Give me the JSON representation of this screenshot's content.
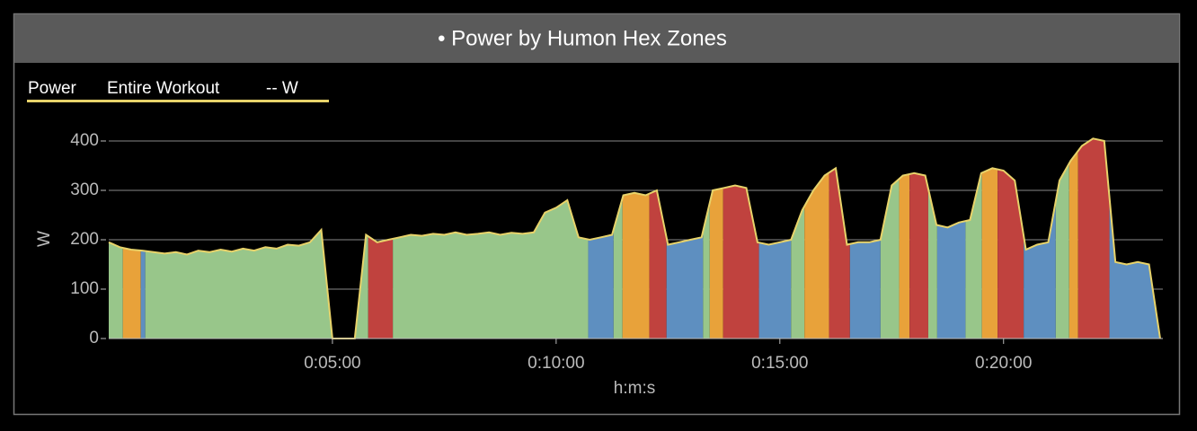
{
  "chart_data": {
    "type": "area",
    "title": "• Power by Humon Hex Zones",
    "legend_subtitle": "Entire Workout",
    "legend_value": "-- W",
    "xlabel": "h:m:s",
    "ylabel": "W",
    "x": [
      0,
      15,
      30,
      45,
      60,
      75,
      90,
      105,
      120,
      135,
      150,
      165,
      180,
      195,
      210,
      225,
      240,
      255,
      270,
      285,
      300,
      315,
      330,
      345,
      360,
      375,
      390,
      405,
      420,
      435,
      450,
      465,
      480,
      495,
      510,
      525,
      540,
      555,
      570,
      585,
      600,
      615,
      630,
      645,
      660,
      675,
      690,
      705,
      720,
      735,
      750,
      765,
      780,
      795,
      810,
      825,
      840,
      855,
      870,
      885,
      900,
      915,
      930,
      945,
      960,
      975,
      990,
      1005,
      1020,
      1035,
      1050,
      1065,
      1080,
      1095,
      1110,
      1125,
      1140,
      1155,
      1170,
      1185,
      1200,
      1215,
      1230,
      1245,
      1260,
      1275,
      1290,
      1305,
      1320,
      1335,
      1350,
      1365,
      1380,
      1395,
      1410
    ],
    "series": [
      {
        "name": "Power",
        "color": "#e8d36a",
        "values": [
          195,
          185,
          180,
          178,
          175,
          172,
          175,
          170,
          178,
          175,
          180,
          176,
          182,
          178,
          185,
          182,
          190,
          188,
          195,
          220,
          0,
          0,
          0,
          210,
          195,
          200,
          205,
          210,
          208,
          212,
          210,
          215,
          210,
          212,
          215,
          210,
          214,
          212,
          215,
          255,
          265,
          280,
          205,
          200,
          205,
          210,
          290,
          295,
          290,
          300,
          190,
          195,
          200,
          205,
          300,
          305,
          310,
          305,
          195,
          190,
          195,
          200,
          260,
          300,
          330,
          345,
          190,
          195,
          195,
          200,
          310,
          330,
          335,
          330,
          230,
          225,
          235,
          240,
          335,
          345,
          340,
          320,
          180,
          190,
          195,
          320,
          360,
          390,
          405,
          400,
          155,
          150,
          155,
          150,
          0
        ]
      }
    ],
    "bands": [
      {
        "start": 0,
        "end": 19,
        "color": "#98c68a"
      },
      {
        "start": 19,
        "end": 43,
        "color": "#e8a23a"
      },
      {
        "start": 43,
        "end": 49,
        "color": "#5e8fc0"
      },
      {
        "start": 49,
        "end": 348,
        "color": "#98c68a"
      },
      {
        "start": 348,
        "end": 381,
        "color": "#c0423e"
      },
      {
        "start": 381,
        "end": 643,
        "color": "#98c68a"
      },
      {
        "start": 643,
        "end": 677,
        "color": "#5e8fc0"
      },
      {
        "start": 677,
        "end": 689,
        "color": "#98c68a"
      },
      {
        "start": 689,
        "end": 725,
        "color": "#e8a23a"
      },
      {
        "start": 725,
        "end": 748,
        "color": "#c0423e"
      },
      {
        "start": 748,
        "end": 797,
        "color": "#5e8fc0"
      },
      {
        "start": 797,
        "end": 806,
        "color": "#98c68a"
      },
      {
        "start": 806,
        "end": 824,
        "color": "#e8a23a"
      },
      {
        "start": 824,
        "end": 872,
        "color": "#c0423e"
      },
      {
        "start": 872,
        "end": 915,
        "color": "#5e8fc0"
      },
      {
        "start": 915,
        "end": 933,
        "color": "#98c68a"
      },
      {
        "start": 933,
        "end": 966,
        "color": "#e8a23a"
      },
      {
        "start": 966,
        "end": 994,
        "color": "#c0423e"
      },
      {
        "start": 994,
        "end": 1035,
        "color": "#5e8fc0"
      },
      {
        "start": 1035,
        "end": 1060,
        "color": "#98c68a"
      },
      {
        "start": 1060,
        "end": 1074,
        "color": "#e8a23a"
      },
      {
        "start": 1074,
        "end": 1099,
        "color": "#c0423e"
      },
      {
        "start": 1099,
        "end": 1111,
        "color": "#98c68a"
      },
      {
        "start": 1111,
        "end": 1149,
        "color": "#5e8fc0"
      },
      {
        "start": 1149,
        "end": 1171,
        "color": "#98c68a"
      },
      {
        "start": 1171,
        "end": 1192,
        "color": "#e8a23a"
      },
      {
        "start": 1192,
        "end": 1227,
        "color": "#c0423e"
      },
      {
        "start": 1227,
        "end": 1270,
        "color": "#5e8fc0"
      },
      {
        "start": 1270,
        "end": 1288,
        "color": "#98c68a"
      },
      {
        "start": 1288,
        "end": 1300,
        "color": "#e8a23a"
      },
      {
        "start": 1300,
        "end": 1342,
        "color": "#c0423e"
      },
      {
        "start": 1342,
        "end": 1410,
        "color": "#5e8fc0"
      }
    ],
    "xlim": [
      0,
      1410
    ],
    "ylim": [
      0,
      420
    ],
    "xticks": [
      {
        "value": 300,
        "label": "0:05:00"
      },
      {
        "value": 600,
        "label": "0:10:00"
      },
      {
        "value": 900,
        "label": "0:15:00"
      },
      {
        "value": 1200,
        "label": "0:20:00"
      }
    ],
    "yticks": [
      0,
      100,
      200,
      300,
      400
    ],
    "grid": true
  }
}
